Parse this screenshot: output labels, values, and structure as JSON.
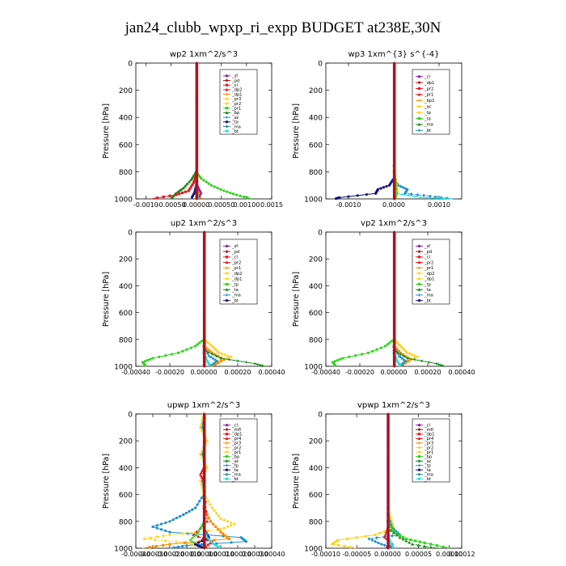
{
  "title": "jan24_clubb_wpxp_ri_expp  BUDGET at238E,30N",
  "colors": {
    "red": "#e41a1c",
    "darkred": "#b01010",
    "orange": "#ff8c00",
    "yellow": "#ffd21a",
    "green": "#2fd51a",
    "darkgreen": "#128a12",
    "blue": "#1f8fd0",
    "navy": "#101080",
    "purple": "#8a1aa8",
    "cyan": "#26e0e0",
    "teal": "#2b8f8f"
  },
  "chart_data": [
    {
      "type": "line",
      "title": "wp2  1xm^2/s^3",
      "ylabel": "Pressure [hPa]",
      "ylim": [
        1000,
        0
      ],
      "yticks": [
        "0",
        "200",
        "400",
        "600",
        "800",
        "1000"
      ],
      "xlim": [
        -0.0012,
        0.0015
      ],
      "xtick_values": [
        -0.001,
        -0.0005,
        0.0,
        0.0005,
        0.001,
        0.0015
      ],
      "xtick_labels": [
        "-0.0010",
        "-0.00050",
        "0.00000",
        "0.00050",
        "0.00100",
        "0.0015"
      ],
      "legend": [
        "_sf",
        "_pd",
        "_cl",
        "_dp2",
        "_dp1",
        "_pr3",
        "_pr2",
        "_pr1",
        "_bp",
        "_ac",
        "_ta",
        "_ma",
        "_bt"
      ],
      "series": [
        {
          "name": "_pr1",
          "color": "green",
          "y": [
            800,
            850,
            900,
            940,
            970,
            1000
          ],
          "x": [
            0.0,
            0.0001,
            0.0003,
            0.00055,
            0.0008,
            0.0011
          ]
        },
        {
          "name": "_bp",
          "color": "darkgreen",
          "y": [
            800,
            860,
            920,
            960,
            1000
          ],
          "x": [
            0.0,
            -0.0001,
            -0.00025,
            -0.0004,
            -0.0005
          ]
        },
        {
          "name": "_dp1",
          "color": "red",
          "y": [
            820,
            880,
            940,
            970,
            1000
          ],
          "x": [
            0.0,
            -5e-05,
            -0.00015,
            -0.0004,
            -0.0009
          ]
        },
        {
          "name": "_pr2",
          "color": "orange",
          "y": [
            850,
            920,
            960,
            1000
          ],
          "x": [
            0.0,
            2e-05,
            5e-05,
            0.0001
          ]
        },
        {
          "name": "_dp2",
          "color": "purple",
          "y": [
            880,
            930,
            960,
            1000
          ],
          "x": [
            0.0,
            6e-05,
            0.0001,
            3e-05
          ]
        },
        {
          "name": "_ta",
          "color": "navy",
          "y": [
            900,
            950,
            1000
          ],
          "x": [
            0.0,
            -3e-05,
            -0.0001
          ]
        },
        {
          "name": "_bt",
          "color": "cyan",
          "y": [
            900,
            960,
            1000
          ],
          "x": [
            0.0,
            2e-05,
            4e-05
          ]
        }
      ]
    },
    {
      "type": "line",
      "title": "wp3  1xm^{3} s^{-4}",
      "ylabel": "Pressure [hPa]",
      "ylim": [
        1000,
        0
      ],
      "yticks": [
        "0",
        "200",
        "400",
        "600",
        "800",
        "1000"
      ],
      "xlim": [
        -0.0015,
        0.0015
      ],
      "xtick_values": [
        -0.001,
        0.0,
        0.001
      ],
      "xtick_labels": [
        "-0.0010",
        "0.0000",
        "0.0010"
      ],
      "legend": [
        "_cl",
        "_dp1",
        "_pr2",
        "_pr1",
        "_bp1",
        "_ac",
        "_tp",
        "_ta",
        "_ma",
        "_bt"
      ],
      "series": [
        {
          "name": "_ta",
          "color": "navy",
          "y": [
            850,
            900,
            930,
            960,
            990,
            1000
          ],
          "x": [
            0.0,
            -0.0001,
            -0.00035,
            -0.0004,
            -0.0012,
            -0.0013
          ]
        },
        {
          "name": "_tp",
          "color": "blue",
          "y": [
            850,
            900,
            930,
            960,
            980,
            1000
          ],
          "x": [
            0.0,
            0.0001,
            0.0003,
            0.00025,
            0.0008,
            0.0013
          ]
        },
        {
          "name": "_pr1",
          "color": "yellow",
          "y": [
            800,
            880,
            950,
            1000
          ],
          "x": [
            0.0,
            5e-05,
            8e-05,
            3e-05
          ]
        },
        {
          "name": "_ac",
          "color": "green",
          "y": [
            750,
            850,
            950,
            1000
          ],
          "x": [
            0.0,
            4e-05,
            6e-05,
            2e-05
          ]
        },
        {
          "name": "_bt",
          "color": "cyan",
          "y": [
            900,
            960,
            990,
            1000
          ],
          "x": [
            0.0,
            5e-05,
            0.0006,
            0.0013
          ]
        }
      ]
    },
    {
      "type": "line",
      "title": "up2  1xm^2/s^3",
      "ylabel": "Pressure [hPa]",
      "ylim": [
        1000,
        0
      ],
      "yticks": [
        "0",
        "200",
        "400",
        "600",
        "800",
        "1000"
      ],
      "xlim": [
        -0.0004,
        0.0004
      ],
      "xtick_values": [
        -0.0004,
        -0.0002,
        0.0,
        0.0002,
        0.0004
      ],
      "xtick_labels": [
        "-0.00040",
        "-0.00020",
        "0.00000",
        "0.00020",
        "0.00040"
      ],
      "legend": [
        "_sf",
        "_pd",
        "_cl",
        "_pr2",
        "_pr1",
        "_dp2",
        "_dp1",
        "_tp",
        "_ta",
        "_ma",
        "_bt"
      ],
      "series": [
        {
          "name": "_dp1",
          "color": "green",
          "y": [
            800,
            850,
            900,
            940,
            970,
            1000
          ],
          "x": [
            0.0,
            -5e-05,
            -0.00015,
            -0.0003,
            -0.00036,
            -0.00034
          ]
        },
        {
          "name": "_pr1",
          "color": "yellow",
          "y": [
            800,
            850,
            900,
            930,
            960,
            1000
          ],
          "x": [
            0.0,
            5e-05,
            9e-05,
            0.00016,
            8e-05,
            4e-05
          ]
        },
        {
          "name": "_pr2",
          "color": "orange",
          "y": [
            850,
            900,
            950,
            1000
          ],
          "x": [
            0.0,
            5e-05,
            0.00012,
            5e-05
          ]
        },
        {
          "name": "_tp",
          "color": "blue",
          "y": [
            850,
            920,
            960,
            1000
          ],
          "x": [
            0.0,
            3e-05,
            8e-05,
            3e-05
          ]
        },
        {
          "name": "_dp2",
          "color": "darkgreen",
          "y": [
            880,
            940,
            980,
            1000
          ],
          "x": [
            0.0,
            0.0001,
            0.0003,
            0.00036
          ]
        },
        {
          "name": "_bt",
          "color": "cyan",
          "y": [
            900,
            960,
            1000
          ],
          "x": [
            0.0,
            2e-05,
            4e-05
          ]
        }
      ]
    },
    {
      "type": "line",
      "title": "vp2  1xm^2/s^3",
      "ylabel": "Pressure [hPa]",
      "ylim": [
        1000,
        0
      ],
      "yticks": [
        "0",
        "200",
        "400",
        "600",
        "800",
        "1000"
      ],
      "xlim": [
        -0.0004,
        0.0004
      ],
      "xtick_values": [
        -0.0004,
        -0.0002,
        0.0,
        0.0002,
        0.0004
      ],
      "xtick_labels": [
        "-0.00040",
        "-0.00020",
        "0.00000",
        "0.00020",
        "0.00040"
      ],
      "legend": [
        "_sf",
        "_pd",
        "_cl",
        "_pr2",
        "_pr1",
        "_dp2",
        "_dp1",
        "_tp",
        "_ta",
        "_ma",
        "_bt"
      ],
      "series": [
        {
          "name": "_dp1",
          "color": "green",
          "y": [
            800,
            850,
            900,
            940,
            970,
            1000
          ],
          "x": [
            0.0,
            -5e-05,
            -0.00015,
            -0.0003,
            -0.00036,
            -0.00034
          ]
        },
        {
          "name": "_pr1",
          "color": "yellow",
          "y": [
            800,
            850,
            900,
            930,
            960,
            1000
          ],
          "x": [
            0.0,
            4e-05,
            8e-05,
            0.00014,
            7e-05,
            3e-05
          ]
        },
        {
          "name": "_pr2",
          "color": "orange",
          "y": [
            850,
            900,
            950,
            1000
          ],
          "x": [
            0.0,
            4e-05,
            0.0001,
            4e-05
          ]
        },
        {
          "name": "_tp",
          "color": "blue",
          "y": [
            850,
            920,
            960,
            1000
          ],
          "x": [
            0.0,
            3e-05,
            7e-05,
            3e-05
          ]
        },
        {
          "name": "_dp2",
          "color": "darkgreen",
          "y": [
            880,
            940,
            980,
            1000
          ],
          "x": [
            0.0,
            8e-05,
            0.00025,
            0.0003
          ]
        },
        {
          "name": "_bt",
          "color": "cyan",
          "y": [
            900,
            960,
            1000
          ],
          "x": [
            0.0,
            2e-05,
            4e-05
          ]
        }
      ]
    },
    {
      "type": "line",
      "title": "upwp  1xm^2/s^3",
      "ylabel": "Pressure [hPa]",
      "ylim": [
        1000,
        0
      ],
      "yticks": [
        "0",
        "200",
        "400",
        "600",
        "800",
        "1000"
      ],
      "xlim": [
        -0.0004,
        0.0004
      ],
      "xtick_values": [
        -0.0004,
        -0.0003,
        -0.0002,
        -0.0001,
        0.0,
        0.0001,
        0.0002,
        0.0003,
        0.0004
      ],
      "xtick_labels": [
        "-0.00040",
        "-0.00030",
        "-0.00020",
        "-0.00010",
        "0.00000",
        "0.00010",
        "0.00020",
        "0.00030",
        "0.00040"
      ],
      "legend": [
        "_cl",
        "_mfl",
        "_dp1",
        "_pr4",
        "_pr3",
        "_pr2",
        "_pr1",
        "_bp",
        "_ac",
        "_tp",
        "_ta",
        "_ma",
        "_bt"
      ],
      "series": [
        {
          "name": "_tp",
          "color": "blue",
          "y": [
            0,
            100,
            200,
            300,
            400,
            500,
            600,
            700,
            750,
            800,
            840,
            880,
            920,
            950,
            980,
            1000
          ],
          "x": [
            0.0,
            -1e-05,
            1e-05,
            -1e-05,
            1e-05,
            -1e-05,
            0.0,
            -5e-05,
            -0.00012,
            -0.0002,
            -0.0003,
            -0.0002,
            0.00022,
            0.00025,
            -0.0001,
            -0.0002
          ]
        },
        {
          "name": "_pr1",
          "color": "yellow",
          "y": [
            0,
            100,
            200,
            300,
            400,
            500,
            600,
            700,
            780,
            820,
            860,
            900,
            930,
            960,
            1000
          ],
          "x": [
            0.0,
            -2e-05,
            2e-05,
            -2e-05,
            2e-05,
            -2e-05,
            0.0,
            5e-05,
            0.0001,
            0.00018,
            0.0001,
            -0.0002,
            -0.00035,
            -0.0001,
            0.0
          ]
        },
        {
          "name": "_pr2",
          "color": "orange",
          "y": [
            700,
            800,
            880,
            930,
            970,
            1000
          ],
          "x": [
            0.0,
            4e-05,
            0.0001,
            0.00015,
            -0.0002,
            -0.00036
          ]
        },
        {
          "name": "_dp1",
          "color": "red",
          "y": [
            400,
            450,
            500,
            800,
            900,
            950,
            1000
          ],
          "x": [
            0.0,
            -2e-05,
            0.0,
            2e-05,
            -6e-05,
            5e-05,
            0.0
          ]
        },
        {
          "name": "_bp",
          "color": "green",
          "y": [
            800,
            880,
            940,
            1000
          ],
          "x": [
            0.0,
            -3e-05,
            -8e-05,
            -2e-05
          ]
        },
        {
          "name": "_ta",
          "color": "navy",
          "y": [
            850,
            920,
            970,
            1000
          ],
          "x": [
            0.0,
            3e-05,
            -5e-05,
            0.0
          ]
        },
        {
          "name": "_bt",
          "color": "cyan",
          "y": [
            850,
            920,
            970,
            1000
          ],
          "x": [
            0.0,
            2e-05,
            6e-05,
            0.0001
          ]
        }
      ]
    },
    {
      "type": "line",
      "title": "vpwp  1xm^2/s^3",
      "ylabel": "Pressure [hPa]",
      "ylim": [
        1000,
        0
      ],
      "yticks": [
        "0",
        "200",
        "400",
        "600",
        "800",
        "1000"
      ],
      "xlim": [
        -0.0001,
        0.00012
      ],
      "xtick_values": [
        -0.0001,
        -5e-05,
        0.0,
        5e-05,
        0.0001,
        0.00012
      ],
      "xtick_labels": [
        "-0.00010",
        "-0.00005",
        "0.00000",
        "0.00005",
        "0.00010",
        "0.00012"
      ],
      "legend": [
        "_cl",
        "_mfl",
        "_dp1",
        "_pr4",
        "_pr3",
        "_pr2",
        "_pr1",
        "_bp",
        "_ac",
        "_tp",
        "_ta",
        "_ma",
        "_bt"
      ],
      "series": [
        {
          "name": "_pr1",
          "color": "yellow",
          "y": [
            700,
            780,
            850,
            900,
            940,
            970,
            1000
          ],
          "x": [
            0.0,
            5e-06,
            1e-05,
            -2e-05,
            -8e-05,
            -9e-05,
            -5e-05
          ]
        },
        {
          "name": "_tp",
          "color": "blue",
          "y": [
            750,
            850,
            900,
            930,
            970,
            1000
          ],
          "x": [
            0.0,
            8e-06,
            2e-05,
            -3e-05,
            -1e-05,
            1e-05
          ]
        },
        {
          "name": "_ac",
          "color": "green",
          "y": [
            800,
            880,
            930,
            960,
            1000
          ],
          "x": [
            0.0,
            1e-05,
            3e-05,
            6e-05,
            0.0001
          ]
        },
        {
          "name": "_bp",
          "color": "darkgreen",
          "y": [
            850,
            920,
            970,
            1000
          ],
          "x": [
            0.0,
            2e-05,
            4e-05,
            8e-05
          ]
        },
        {
          "name": "_dp1",
          "color": "red",
          "y": [
            850,
            920,
            970,
            1000
          ],
          "x": [
            0.0,
            -5e-06,
            8e-06,
            -4e-06
          ]
        },
        {
          "name": "_bt",
          "color": "cyan",
          "y": [
            900,
            960,
            1000
          ],
          "x": [
            0.0,
            5e-06,
            1e-05
          ]
        }
      ]
    }
  ]
}
